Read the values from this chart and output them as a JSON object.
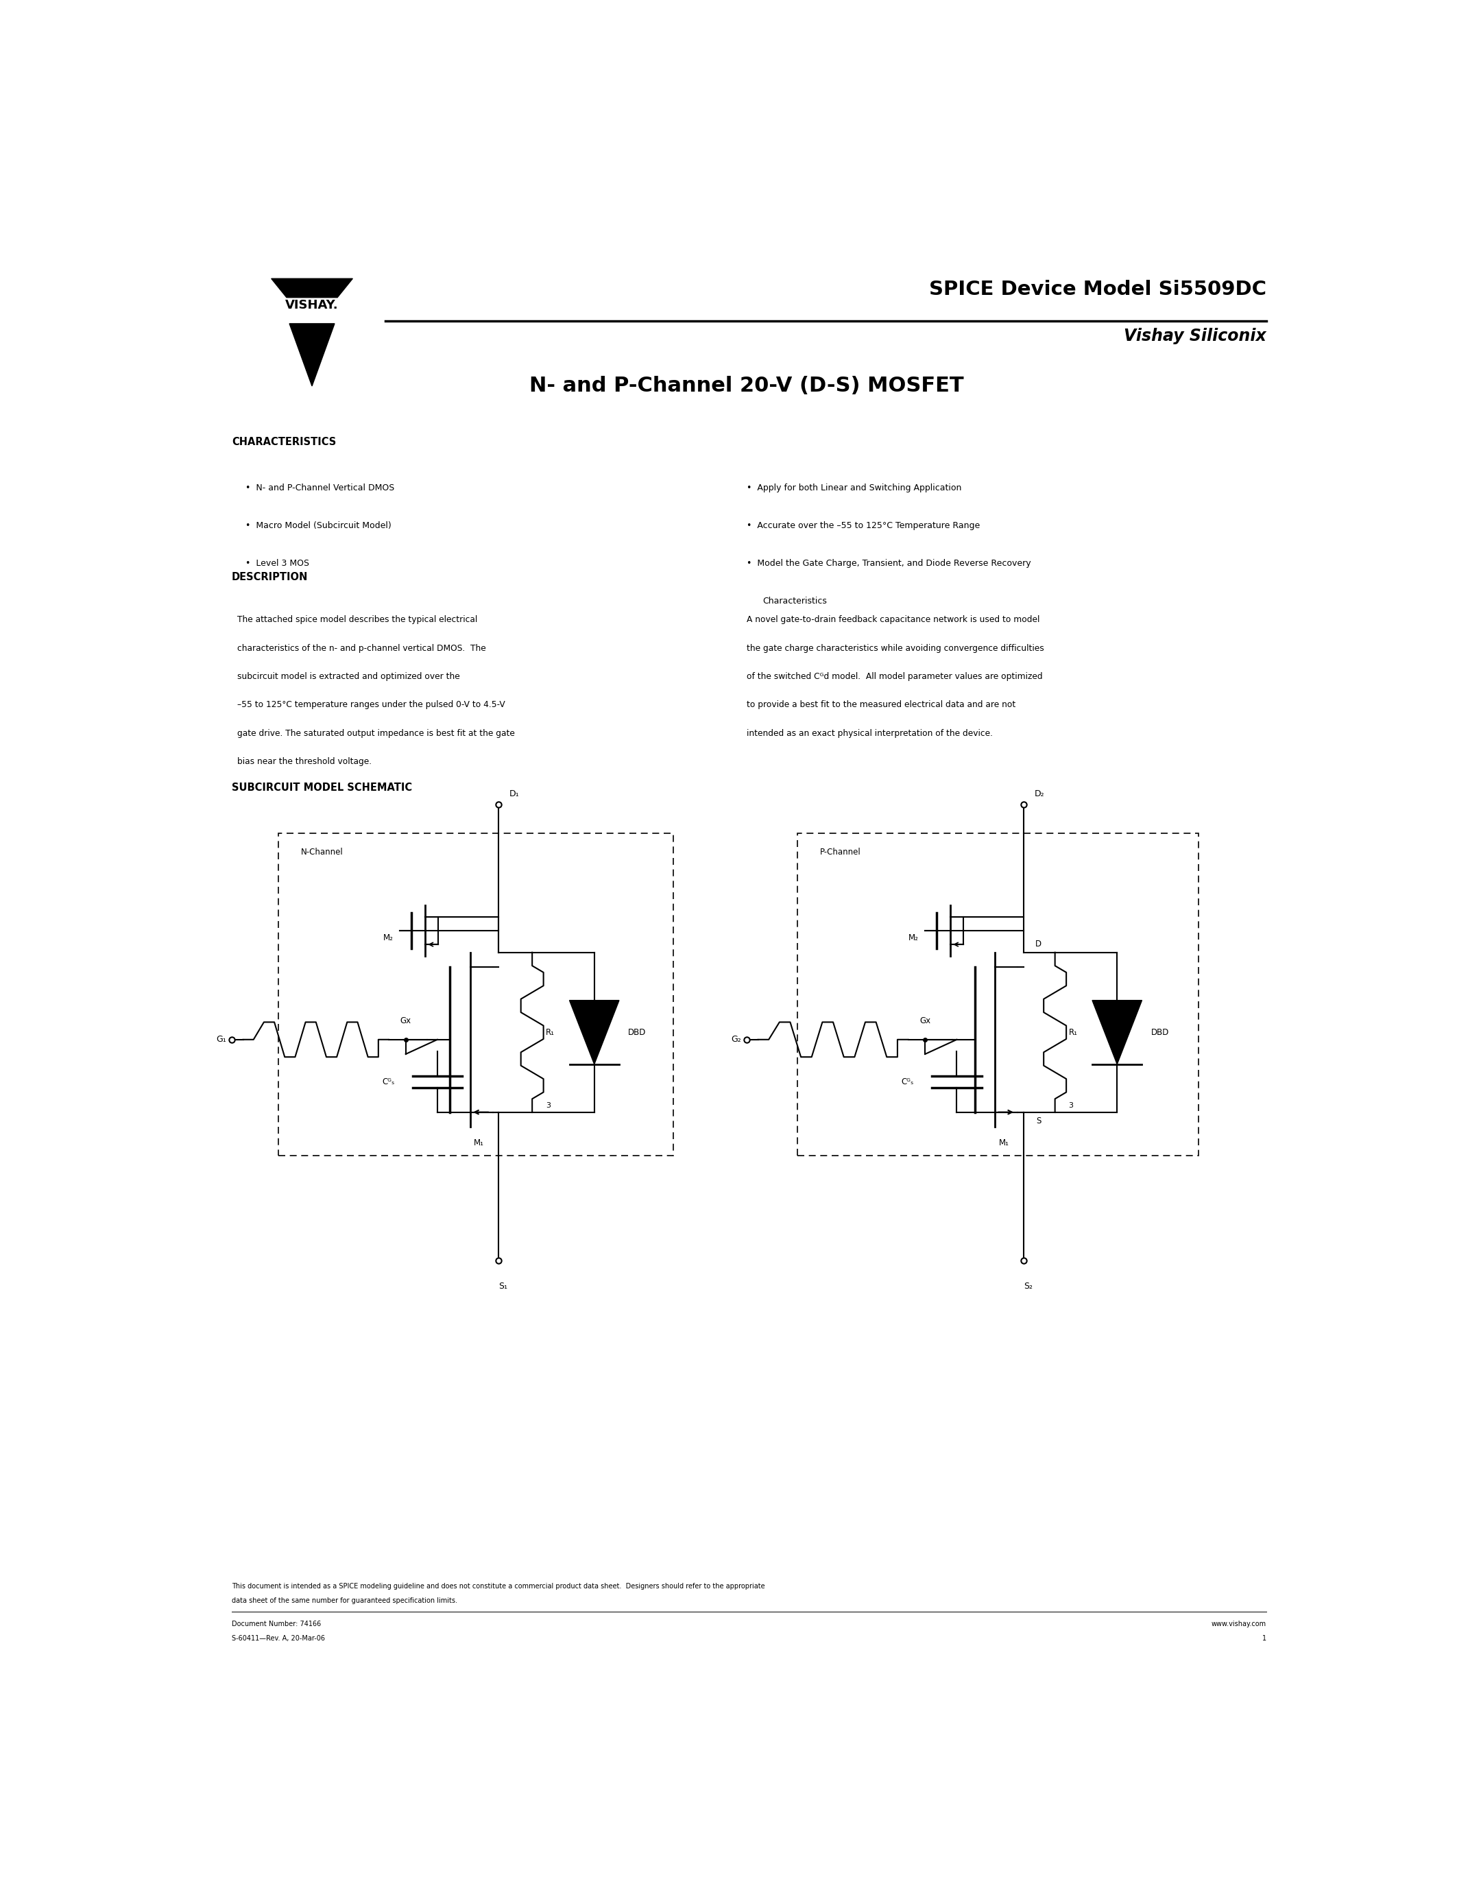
{
  "page_width": 21.25,
  "page_height": 27.5,
  "bg_color": "#ffffff",
  "header": {
    "spice_title": "SPICE Device Model Si5509DC",
    "company": "Vishay Siliconix",
    "main_title": "N- and P-Channel 20-V (D-S) MOSFET"
  },
  "characteristics_header": "CHARACTERISTICS",
  "characteristics_left": [
    "N- and P-Channel Vertical DMOS",
    "Macro Model (Subcircuit Model)",
    "Level 3 MOS"
  ],
  "characteristics_right": [
    "Apply for both Linear and Switching Application",
    "Accurate over the –55 to 125°C Temperature Range",
    "Model the Gate Charge, Transient, and Diode Reverse Recovery",
    "Characteristics"
  ],
  "description_header": "DESCRIPTION",
  "desc_left_lines": [
    "The attached spice model describes the typical electrical",
    "characteristics of the n- and p-channel vertical DMOS.  The",
    "subcircuit model is extracted and optimized over the",
    "–55 to 125°C temperature ranges under the pulsed 0-V to 4.5-V",
    "gate drive. The saturated output impedance is best fit at the gate",
    "bias near the threshold voltage."
  ],
  "desc_right_lines": [
    "A novel gate-to-drain feedback capacitance network is used to model",
    "the gate charge characteristics while avoiding convergence difficulties",
    "of the switched Cᴳd model.  All model parameter values are optimized",
    "to provide a best fit to the measured electrical data and are not",
    "intended as an exact physical interpretation of the device."
  ],
  "schematic_header": "SUBCIRCUIT MODEL SCHEMATIC",
  "footer_line1": "This document is intended as a SPICE modeling guideline and does not constitute a commercial product data sheet.  Designers should refer to the appropriate",
  "footer_line2": "data sheet of the same number for guaranteed specification limits.",
  "footer_doc": "Document Number: 74166",
  "footer_rev": "S-60411—Rev. A, 20-Mar-06",
  "footer_web": "www.vishay.com",
  "footer_page": "1"
}
